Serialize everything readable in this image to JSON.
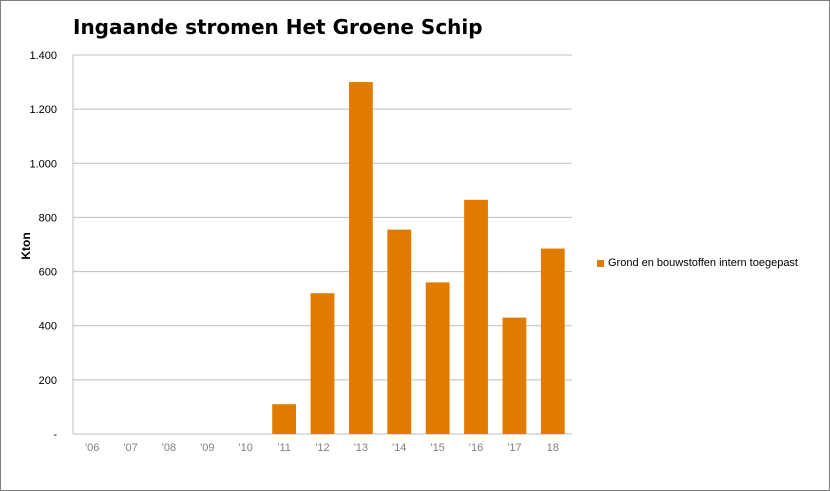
{
  "chart_data": {
    "type": "bar",
    "title": "Ingaande stromen Het Groene Schip",
    "ylabel": "Kton",
    "xlabel": "",
    "categories": [
      "'06",
      "'07",
      "'08",
      "'09",
      "'10",
      "'11",
      "'12",
      "'13",
      "'14",
      "'15",
      "'16",
      "'17",
      "18"
    ],
    "series": [
      {
        "name": "Grond en bouwstoffen intern toegepast",
        "values": [
          0,
          0,
          0,
          0,
          0,
          110,
          520,
          1300,
          755,
          560,
          865,
          430,
          685
        ]
      }
    ],
    "ylim": [
      0,
      1400
    ],
    "yticks": [
      0,
      200,
      400,
      600,
      800,
      1000,
      1200,
      1400
    ],
    "ytick_labels": [
      "-",
      "200",
      "400",
      "600",
      "800",
      "1.000",
      "1.200",
      "1.400"
    ],
    "grid": true,
    "legend_position": "right",
    "colors": {
      "bar": "#e07b00",
      "grid": "#bfbfbf",
      "axis": "#bfbfbf",
      "border": "#7f7f7f"
    }
  }
}
